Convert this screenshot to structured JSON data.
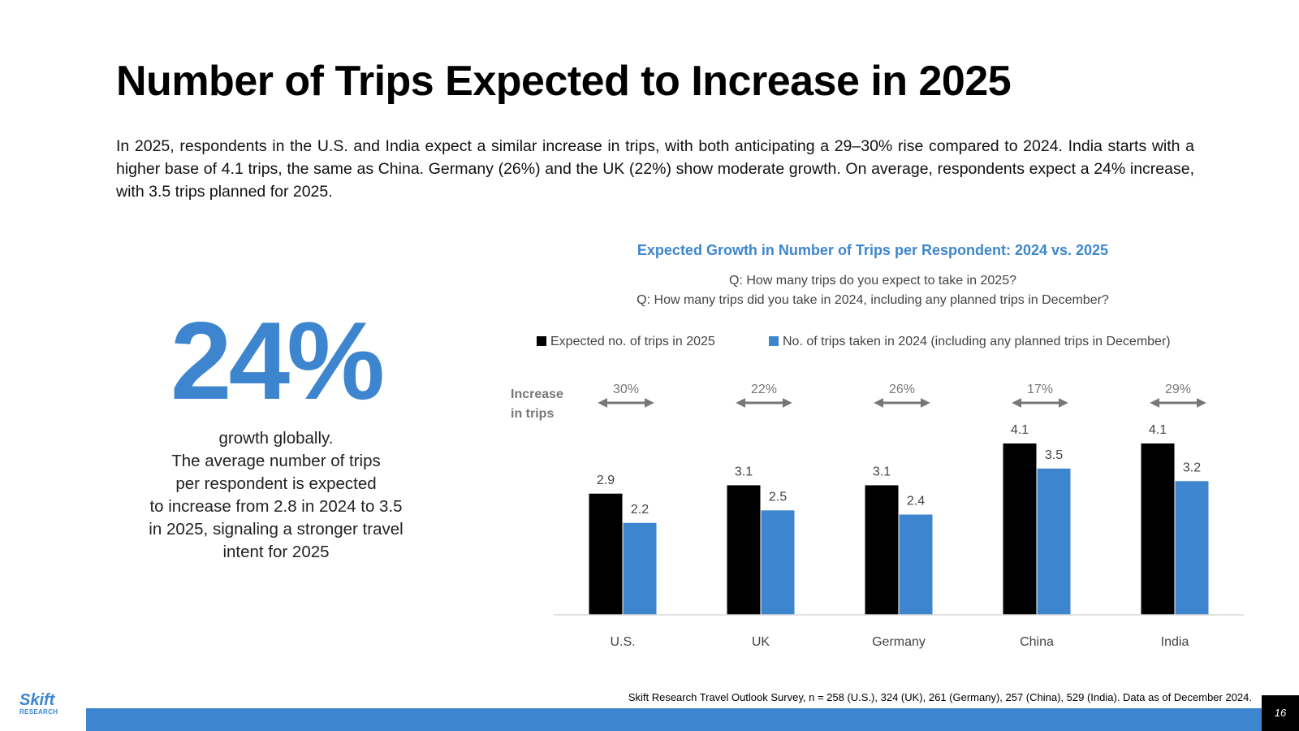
{
  "title": "Number of Trips Expected to Increase in 2025",
  "intro": "In 2025, respondents in the U.S. and India expect a similar increase in trips, with both anticipating a 29–30% rise compared to 2024. India starts with a higher base of 4.1 trips, the same as China. Germany (26%) and the UK (22%) show moderate growth. On average, respondents expect a 24% increase, with 3.5 trips planned for 2025.",
  "highlight": {
    "value": "24%",
    "lines": [
      "growth globally.",
      "The average number of trips",
      "per respondent is expected",
      "to increase from 2.8 in 2024 to 3.5",
      "in 2025, signaling a stronger travel",
      "intent for 2025"
    ]
  },
  "chart_data": {
    "type": "bar",
    "title": "Expected Growth in Number of Trips per Respondent: 2024 vs. 2025",
    "subtitles": [
      "Q: How many trips do you expect to take in 2025?",
      "Q: How many trips did you take in 2024, including any planned trips in December?"
    ],
    "categories": [
      "U.S.",
      "UK",
      "Germany",
      "China",
      "India"
    ],
    "series": [
      {
        "name": "Expected no. of trips in 2025",
        "color": "#000000",
        "values": [
          2.9,
          3.1,
          3.1,
          4.1,
          4.1
        ]
      },
      {
        "name": "No. of trips taken in 2024 (including any planned trips in December)",
        "color": "#3d86cf",
        "values": [
          2.2,
          2.5,
          2.4,
          3.5,
          3.2
        ]
      }
    ],
    "increase_label": [
      "Increase",
      "in trips"
    ],
    "increase": [
      "30%",
      "22%",
      "26%",
      "17%",
      "29%"
    ],
    "ylim": [
      0,
      4.1
    ],
    "legend_position": "top",
    "grid": false
  },
  "colors": {
    "accent": "#3d86cf",
    "black": "#000000"
  },
  "footer": {
    "source": "Skift Research Travel Outlook Survey, n = 258 (U.S.), 324 (UK), 261 (Germany), 257 (China), 529 (India). Data as of December  2024.",
    "page": "16",
    "logo_main": "Skift",
    "logo_sub": "RESEARCH"
  }
}
